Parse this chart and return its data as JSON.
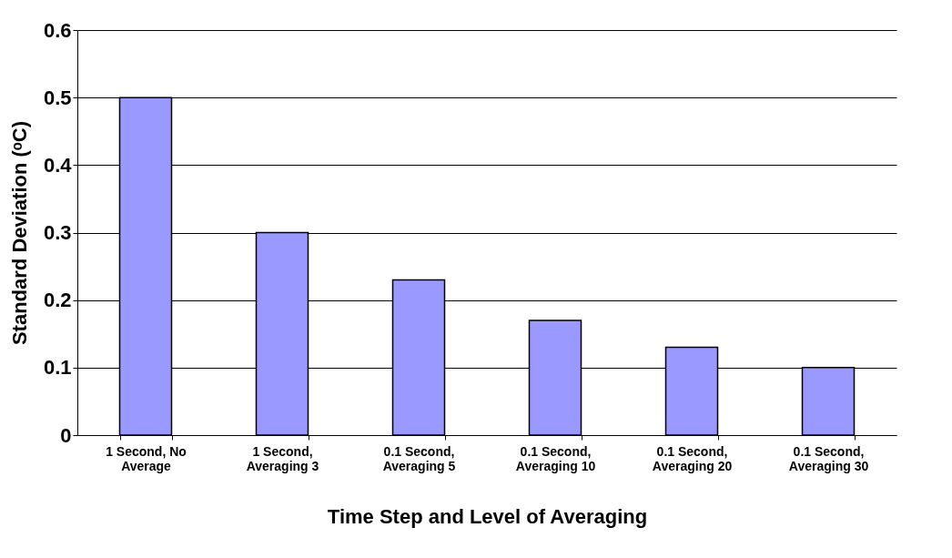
{
  "chart_data": {
    "type": "bar",
    "xlabel": "Time Step and Level of Averaging",
    "ylabel": "Standard Deviation (ᵒC)",
    "categories": [
      "1 Second, No Average",
      "1 Second, Averaging 3",
      "0.1 Second, Averaging 5",
      "0.1 Second, Averaging 10",
      "0.1 Second, Averaging 20",
      "0.1 Second, Averaging 30"
    ],
    "values": [
      0.5,
      0.3,
      0.23,
      0.17,
      0.13,
      0.1
    ],
    "color": "#9999ff",
    "ylim": [
      0,
      0.6
    ],
    "yticks": [
      0,
      0.1,
      0.2,
      0.3,
      0.4,
      0.5,
      0.6
    ],
    "grid": "y",
    "legend": false
  }
}
